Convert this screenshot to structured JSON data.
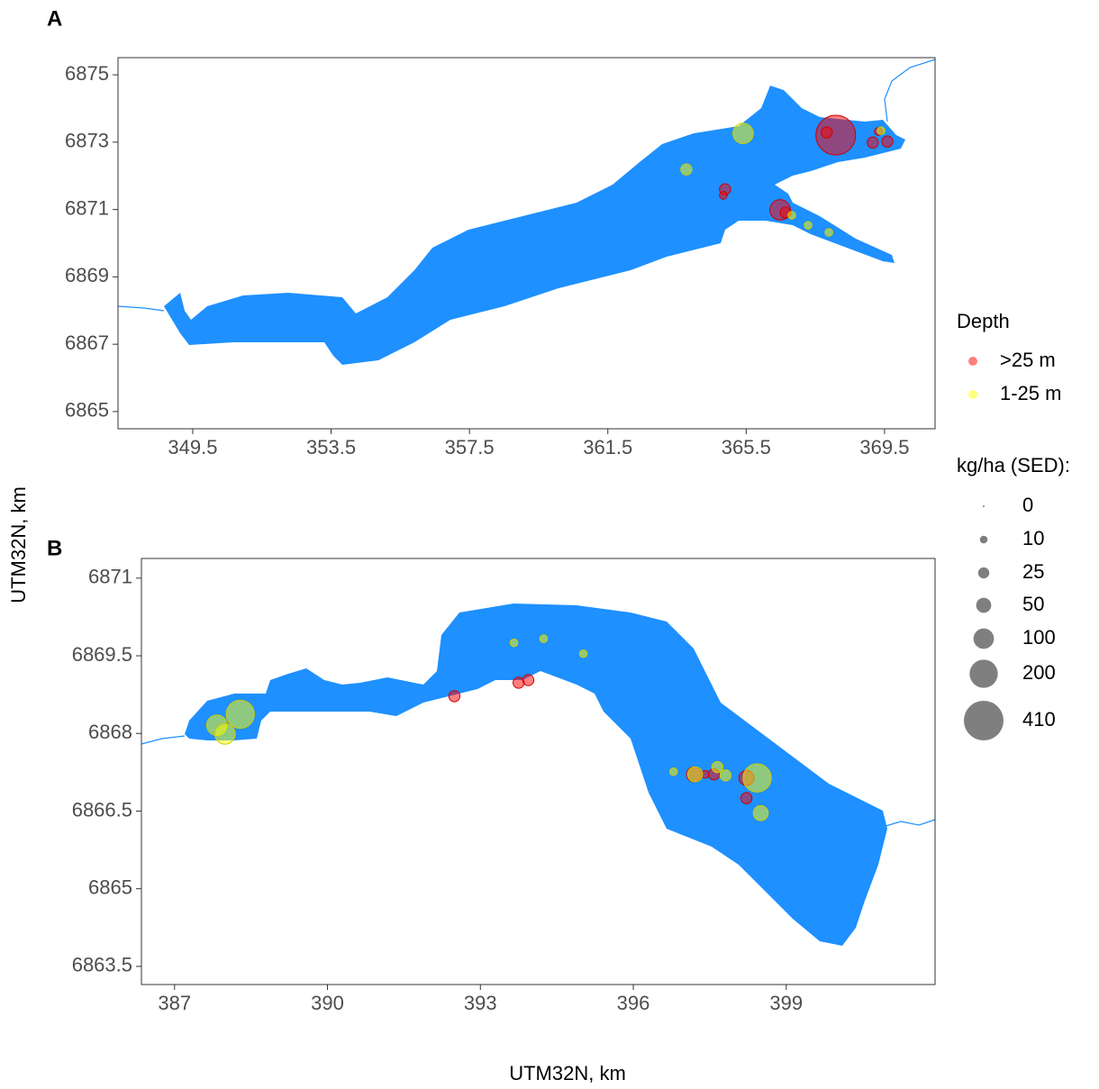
{
  "x_label": "UTM32N, km",
  "y_label": "UTM32N, km",
  "legend": {
    "color_title": "Depth",
    "size_title": "kg/ha (SED):",
    "sizes": [
      0,
      10,
      25,
      50,
      100,
      200,
      410
    ]
  },
  "chart_data": [
    {
      "type": "scatter",
      "panel": "A",
      "xlim": [
        347.34,
        370.96
      ],
      "ylim": [
        6864.49,
        6875.51
      ],
      "xticks": [
        349.5,
        353.5,
        357.5,
        361.5,
        365.5,
        369.5
      ],
      "yticks": [
        6865,
        6867,
        6869,
        6871,
        6873,
        6875
      ],
      "series": [
        {
          "name": ">25 m",
          "color": "#ff0000",
          "x": [
            368.09,
            367.83,
            369.16,
            369.58,
            369.32,
            364.89,
            364.84,
            366.48,
            366.64
          ],
          "y": [
            6873.21,
            6873.29,
            6872.99,
            6873.02,
            6873.32,
            6871.6,
            6871.42,
            6870.99,
            6870.91
          ],
          "size": [
            410,
            25,
            25,
            25,
            10,
            25,
            10,
            100,
            25
          ]
        },
        {
          "name": "1-25 m",
          "color": "#ffff00",
          "x": [
            365.41,
            363.77,
            366.82,
            367.29,
            367.89,
            369.4
          ],
          "y": [
            6873.26,
            6872.19,
            6870.83,
            6870.53,
            6870.32,
            6873.34
          ],
          "size": [
            100,
            25,
            10,
            10,
            10,
            10
          ]
        }
      ]
    },
    {
      "type": "scatter",
      "panel": "B",
      "xlim": [
        386.35,
        401.92
      ],
      "ylim": [
        6863.15,
        6871.38
      ],
      "xticks": [
        387,
        390,
        393,
        396,
        399
      ],
      "yticks": [
        6863.5,
        6865,
        6866.5,
        6868,
        6869.5,
        6871
      ],
      "series": [
        {
          "color": "#ff0000",
          "x": [
            392.49,
            393.75,
            393.94,
            397.19,
            397.58,
            398.22,
            398.22,
            397.41
          ],
          "y": [
            6868.72,
            6868.98,
            6869.03,
            6867.21,
            6867.21,
            6867.14,
            6866.75,
            6867.21
          ],
          "size": [
            25,
            25,
            25,
            50,
            25,
            50,
            25,
            10
          ]
        },
        {
          "color": "#ffff00",
          "x": [
            388.29,
            387.83,
            387.99,
            394.24,
            393.66,
            395.02,
            396.79,
            397.65,
            397.81,
            398.43,
            398.5,
            397.21
          ],
          "y": [
            6868.37,
            6868.16,
            6867.99,
            6869.83,
            6869.75,
            6869.54,
            6867.26,
            6867.35,
            6867.19,
            6867.14,
            6866.46,
            6867.21
          ],
          "size": [
            200,
            100,
            100,
            10,
            10,
            10,
            10,
            25,
            25,
            200,
            50,
            50
          ]
        }
      ]
    }
  ]
}
